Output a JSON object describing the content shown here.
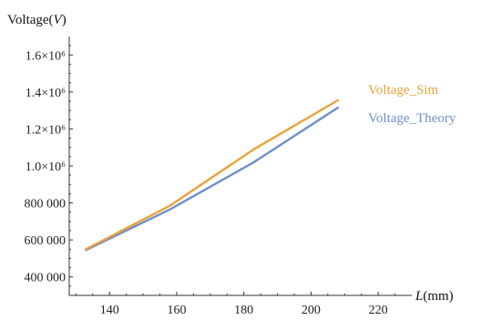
{
  "chart_data": {
    "type": "line",
    "xlabel_prefix": "L",
    "xlabel_unit": "(mm)",
    "ylabel_main": "Voltage(",
    "ylabel_var": "V",
    "ylabel_close": ")",
    "xlim": [
      128,
      230
    ],
    "ylim": [
      300000,
      1700000
    ],
    "x_ticks": [
      140,
      160,
      180,
      200,
      220
    ],
    "x_tick_labels": [
      "140",
      "160",
      "180",
      "200",
      "220"
    ],
    "y_ticks": [
      400000,
      600000,
      800000,
      1000000,
      1200000,
      1400000,
      1600000
    ],
    "y_tick_labels": [
      "400 000",
      "600 000",
      "800 000",
      "1.0×10⁶",
      "1.2×10⁶",
      "1.4×10⁶",
      "1.6×10⁶"
    ],
    "series": [
      {
        "name": "Voltage_Sim",
        "color": "#e8a33c",
        "x": [
          133,
          158,
          183,
          208
        ],
        "y": [
          550000,
          785000,
          1090000,
          1355000
        ]
      },
      {
        "name": "Voltage_Theory",
        "color": "#6f8fc8",
        "x": [
          133,
          158,
          183,
          208
        ],
        "y": [
          545000,
          765000,
          1020000,
          1315000
        ]
      }
    ],
    "legend_placement": "right-of-lines",
    "grid": false
  }
}
